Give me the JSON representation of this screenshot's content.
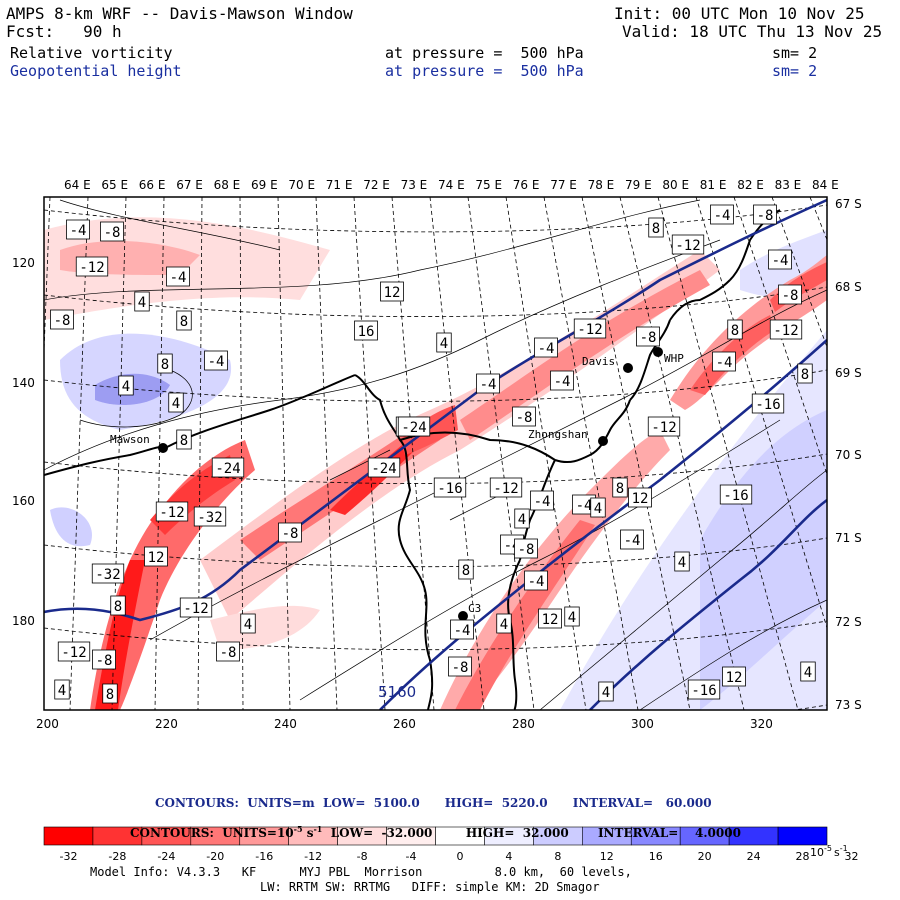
{
  "header": {
    "title": "AMPS 8-km WRF -- Davis-Mawson Window",
    "init": "Init: 00 UTC Mon 10 Nov 25",
    "fcst": "Fcst:   90 h",
    "valid": "Valid: 18 UTC Thu 13 Nov 25",
    "field1": "Relative vorticity",
    "field1_level": "at pressure =  500 hPa",
    "field1_sm": "sm= 2",
    "field2": "Geopotential height",
    "field2_level": "at pressure =  500 hPa",
    "field2_sm": "sm= 2"
  },
  "map": {
    "top_lon_labels": [
      "64 E",
      "65 E",
      "66 E",
      "67 E",
      "68 E",
      "69 E",
      "70 E",
      "71 E",
      "72 E",
      "73 E",
      "74 E",
      "75 E",
      "76 E",
      "77 E",
      "78 E",
      "79 E",
      "80 E",
      "81 E",
      "82 E",
      "83 E",
      "84 E"
    ],
    "right_lat_labels": [
      "67 S",
      "68 S",
      "69 S",
      "70 S",
      "71 S",
      "72 S",
      "73 S"
    ],
    "left_y_labels": [
      "120",
      "140",
      "160",
      "180"
    ],
    "bottom_x_labels": [
      "200",
      "220",
      "240",
      "260",
      "280",
      "300",
      "320"
    ],
    "stations": [
      "Mawson",
      "Davis",
      "WHP",
      "Zhongshan",
      "C3"
    ],
    "height_label": "5160",
    "vorticity_labels": [
      "-4",
      "-8",
      "-12",
      "-4",
      "4",
      "-8",
      "8",
      "12",
      "16",
      "8",
      "4",
      "4",
      "-4",
      "8",
      "8",
      "-4",
      "-8",
      "-12",
      "-4",
      "-8",
      "4",
      "-4",
      "-12",
      "-8",
      "8",
      "-12",
      "-4",
      "8",
      "-4",
      "-4",
      "-16",
      "-8",
      "-12",
      "-16",
      "-24",
      "-24",
      "-12",
      "-32",
      "-8",
      "-16",
      "-12",
      "-4",
      "-4",
      "-4",
      "-16",
      "4",
      "12",
      "-32",
      "8",
      "-12",
      "4",
      "-8",
      "-4",
      "12",
      "-4",
      "4",
      "-8",
      "4",
      "-4",
      "-8",
      "-12",
      "-8",
      "4",
      "8",
      "4",
      "-16",
      "12",
      "4",
      "8",
      "4",
      "12",
      "8",
      "4",
      "-24"
    ]
  },
  "legend": {
    "contours1": "CONTOURS:  UNITS=m  LOW=  5100.0      HIGH=  5220.0      INTERVAL=   60.000",
    "contours2_a": "CONTOURS:  UNITS=10",
    "contours2_sup": "-5",
    "contours2_b": " s",
    "contours2_sup2": "-1",
    "contours2_c": "  LOW=  -32.000        HIGH=  32.000       INTERVAL=    4.0000",
    "colorbar_ticks": [
      "-32",
      "-28",
      "-24",
      "-20",
      "-16",
      "-12",
      "-8",
      "-4",
      "0",
      "4",
      "8",
      "12",
      "16",
      "20",
      "24",
      "28",
      "32"
    ],
    "colorbar_unit": "10",
    "colorbar_unit_sup": "-5",
    "colorbar_unit_b": "s",
    "colorbar_unit_sup2": "-1",
    "colors": [
      "#ff0000",
      "#ff3333",
      "#ff5555",
      "#ff7777",
      "#ff9999",
      "#ffbbbb",
      "#ffdddd",
      "#ffeeee",
      "#ffffff",
      "#ffffff",
      "#eeeeff",
      "#ccccff",
      "#aaaaff",
      "#8888ff",
      "#6666ff",
      "#3333ff",
      "#0000ff"
    ]
  },
  "footer": {
    "line1": "Model Info: V4.3.3   KF      MYJ PBL  Morrison          8.0 km,  60 levels,",
    "line2": "LW: RRTM SW: RRTMG   DIFF: simple KM: 2D Smagor"
  }
}
